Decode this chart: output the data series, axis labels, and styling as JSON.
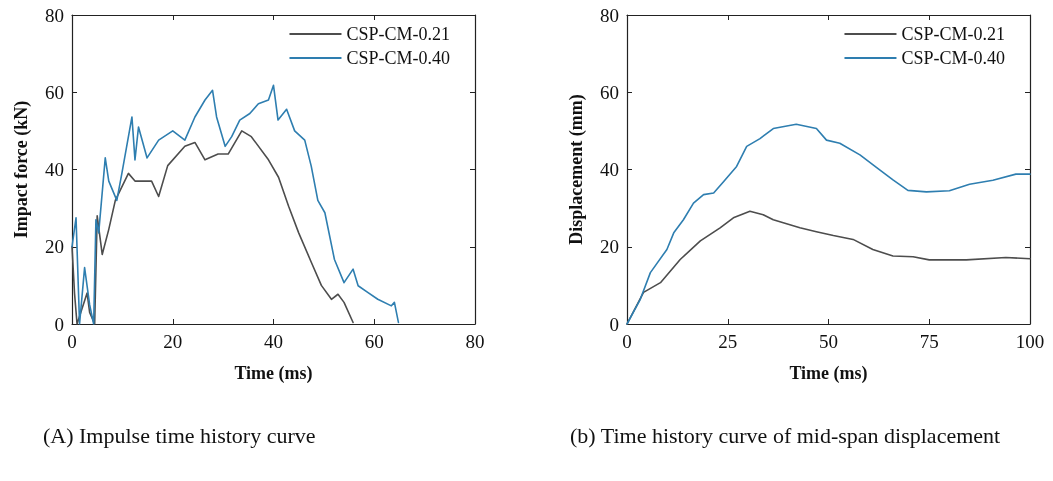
{
  "chart_data": [
    {
      "type": "line",
      "xlabel": "Time (ms)",
      "ylabel": "Impact force (kN)",
      "xlim": [
        0,
        80
      ],
      "ylim": [
        0,
        80
      ],
      "xticks": [
        0,
        20,
        40,
        60,
        80
      ],
      "yticks": [
        0,
        20,
        40,
        60,
        80
      ],
      "grid": false,
      "legend": "top right",
      "marker": "none",
      "line_style": "solid",
      "annotations": [
        "(A) Impulse time history curve"
      ],
      "series": [
        {
          "name": "CSP-CM-0.21",
          "color": "#4d4d4d",
          "x": [
            0,
            0.5,
            1,
            2,
            3,
            3.5,
            4.5,
            5,
            6,
            7.3,
            8.6,
            11.2,
            12.5,
            15.8,
            17.2,
            19,
            22.4,
            24.4,
            26.4,
            29,
            31,
            33.7,
            35.6,
            39,
            41,
            43,
            45,
            47.5,
            49.5,
            51.5,
            52.8,
            54,
            55.8
          ],
          "values": [
            20,
            8,
            0,
            4,
            8,
            3,
            0,
            28,
            18,
            24.5,
            32,
            39,
            37,
            37,
            33,
            41,
            46,
            47,
            42.5,
            44,
            44,
            50,
            48.5,
            42.5,
            38,
            30.5,
            23.6,
            16,
            10,
            6.4,
            7.7,
            5.6,
            0.4
          ]
        },
        {
          "name": "CSP-CM-0.40",
          "color": "#2e7eb0",
          "x": [
            0,
            0.8,
            1.5,
            2.5,
            3.5,
            4.3,
            4.75,
            5.3,
            6.6,
            7.3,
            8.9,
            9.9,
            11.9,
            12.5,
            13.2,
            14.9,
            17.2,
            20,
            22.4,
            24.4,
            26.4,
            27.9,
            28.7,
            30.4,
            31.7,
            33.3,
            35.3,
            37,
            39,
            40,
            40.9,
            42.6,
            44.2,
            46.2,
            47.5,
            48.8,
            50.2,
            52.1,
            54,
            55.8,
            56.8,
            58.7,
            60.7,
            63.4,
            64,
            64.8
          ],
          "values": [
            20,
            27.5,
            0,
            14.6,
            5,
            0,
            27,
            23.6,
            43,
            37,
            32,
            39,
            53.6,
            42.5,
            51,
            43,
            47.6,
            50,
            47.6,
            53.6,
            58,
            60.5,
            53.6,
            46,
            48.5,
            52.8,
            54.5,
            57,
            58,
            61.8,
            52.8,
            55.6,
            50,
            47.6,
            40.8,
            32,
            28.8,
            16.7,
            10.7,
            14.2,
            9.9,
            8.2,
            6.4,
            4.7,
            5.6,
            0.4
          ]
        }
      ]
    },
    {
      "type": "line",
      "xlabel": "Time (ms)",
      "ylabel": "Displacement (mm)",
      "xlim": [
        0,
        100
      ],
      "ylim": [
        0,
        80
      ],
      "xticks": [
        0,
        25,
        50,
        75,
        100
      ],
      "yticks": [
        0,
        20,
        40,
        60,
        80
      ],
      "grid": false,
      "legend": "top right",
      "marker": "none",
      "line_style": "solid",
      "annotations": [
        "(b) Time history curve of mid-span displacement"
      ],
      "series": [
        {
          "name": "CSP-CM-0.21",
          "color": "#4d4d4d",
          "x": [
            0,
            4.1,
            8.3,
            13.2,
            18.2,
            23.1,
            26.4,
            30.5,
            33.8,
            36.3,
            42.9,
            47,
            51.2,
            56.1,
            61,
            66,
            71,
            75,
            84.2,
            94,
            100
          ],
          "values": [
            0,
            8.2,
            10.7,
            16.7,
            21.5,
            24.9,
            27.5,
            29.2,
            28.3,
            27,
            24.9,
            23.9,
            22.9,
            21.9,
            19.3,
            17.6,
            17.4,
            16.6,
            16.6,
            17.2,
            16.9
          ]
        },
        {
          "name": "CSP-CM-0.40",
          "color": "#2e7eb0",
          "x": [
            0,
            3.3,
            5.8,
            9.9,
            11.6,
            14,
            16.5,
            19,
            21.5,
            24,
            27.2,
            29.7,
            33,
            36.3,
            42,
            47,
            49.5,
            52.8,
            57.8,
            62.7,
            66,
            69.7,
            74.3,
            80,
            85,
            90.8,
            96.5,
            100
          ],
          "values": [
            0,
            6.4,
            13.3,
            19.3,
            23.6,
            27,
            31.3,
            33.5,
            33.9,
            36.9,
            40.8,
            46,
            48,
            50.6,
            51.7,
            50.6,
            47.6,
            46.8,
            43.8,
            39.9,
            37.3,
            34.6,
            34.2,
            34.5,
            36.2,
            37.2,
            38.8,
            38.8
          ]
        }
      ]
    }
  ]
}
